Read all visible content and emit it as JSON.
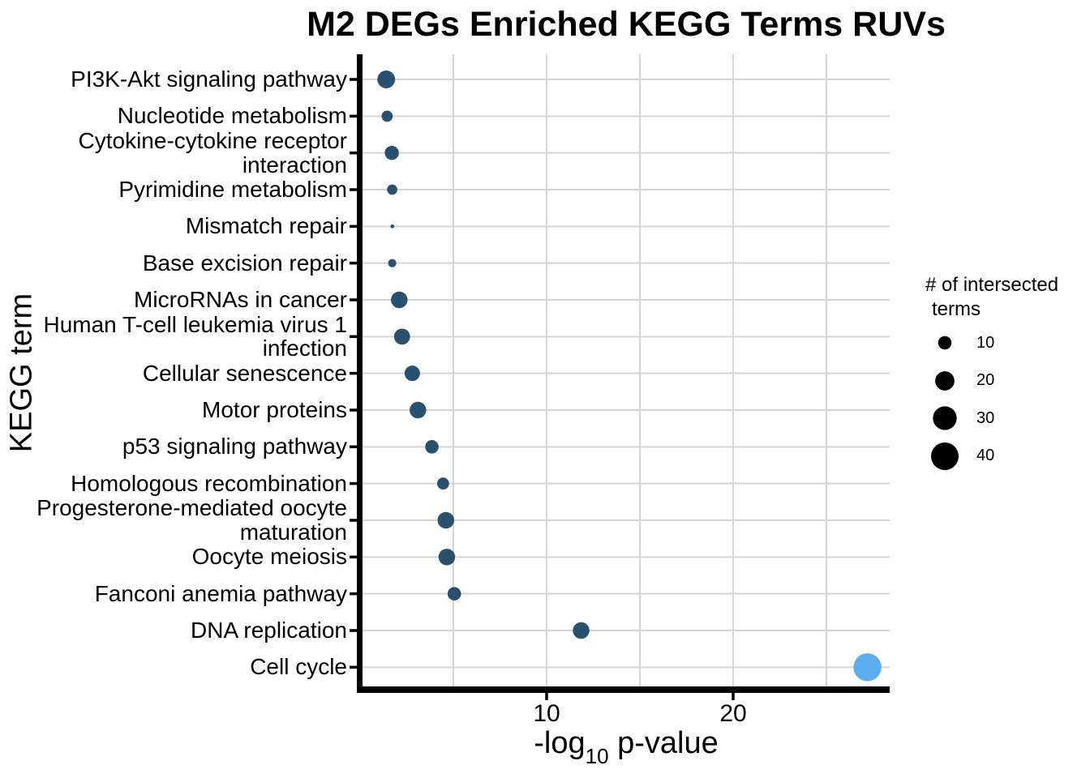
{
  "chart_data": {
    "type": "scatter",
    "title": "M2 DEGs Enriched KEGG Terms RUVs",
    "ylabel": "KEGG term",
    "xlabel": "-log10 p-value",
    "xlabel_parts": {
      "base": "-log",
      "sub": "10",
      "rest": " p-value"
    },
    "x_ticks": [
      "10",
      "20"
    ],
    "x_tick_values": [
      10,
      20
    ],
    "x_gridline_values": [
      5,
      10,
      15,
      20,
      25
    ],
    "xlim": [
      0,
      28.4
    ],
    "grid": true,
    "legend_position": "right",
    "size_legend": {
      "title_line1": "# of intersected",
      "title_line2": "terms",
      "values": [
        10,
        20,
        30,
        40
      ],
      "labels": [
        "10",
        "20",
        "30",
        "40"
      ],
      "dot_color": "#000000"
    },
    "colors": {
      "dot_default": "#29506F",
      "dot_highlight": "#5CADEE",
      "gridline": "#D5D5D5",
      "axis": "#000000",
      "text": "#000000"
    },
    "points": [
      {
        "term": "PI3K-Akt signaling pathway",
        "label": "PI3K-Akt signaling pathway",
        "neg_log10_p": 1.4,
        "intersected_terms": 17,
        "color": "#29506F"
      },
      {
        "term": "Nucleotide metabolism",
        "label": "Nucleotide metabolism",
        "neg_log10_p": 1.45,
        "intersected_terms": 7,
        "color": "#29506F"
      },
      {
        "term": "Cytokine-cytokine receptor interaction",
        "label": "Cytokine-cytokine receptor\ninteraction",
        "neg_log10_p": 1.7,
        "intersected_terms": 11,
        "color": "#29506F"
      },
      {
        "term": "Pyrimidine metabolism",
        "label": "Pyrimidine metabolism",
        "neg_log10_p": 1.72,
        "intersected_terms": 6,
        "color": "#29506F"
      },
      {
        "term": "Mismatch repair",
        "label": "Mismatch repair",
        "neg_log10_p": 1.73,
        "intersected_terms": 1,
        "color": "#29506F"
      },
      {
        "term": "Base excision repair",
        "label": "Base excision repair",
        "neg_log10_p": 1.72,
        "intersected_terms": 4,
        "color": "#29506F"
      },
      {
        "term": "MicroRNAs in cancer",
        "label": "MicroRNAs in cancer",
        "neg_log10_p": 2.1,
        "intersected_terms": 15,
        "color": "#29506F"
      },
      {
        "term": "Human T-cell leukemia virus 1 infection",
        "label": "Human T-cell leukemia virus 1\ninfection",
        "neg_log10_p": 2.25,
        "intersected_terms": 14,
        "color": "#29506F"
      },
      {
        "term": "Cellular senescence",
        "label": "Cellular senescence",
        "neg_log10_p": 2.8,
        "intersected_terms": 13,
        "color": "#29506F"
      },
      {
        "term": "Motor proteins",
        "label": "Motor proteins",
        "neg_log10_p": 3.1,
        "intersected_terms": 15,
        "color": "#29506F"
      },
      {
        "term": "p53 signaling pathway",
        "label": "p53 signaling pathway",
        "neg_log10_p": 3.85,
        "intersected_terms": 10,
        "color": "#29506F"
      },
      {
        "term": "Homologous recombination",
        "label": "Homologous recombination",
        "neg_log10_p": 4.45,
        "intersected_terms": 8,
        "color": "#29506F"
      },
      {
        "term": "Progesterone-mediated oocyte maturation",
        "label": "Progesterone-mediated oocyte\nmaturation",
        "neg_log10_p": 4.6,
        "intersected_terms": 15,
        "color": "#29506F"
      },
      {
        "term": "Oocyte meiosis",
        "label": "Oocyte meiosis",
        "neg_log10_p": 4.65,
        "intersected_terms": 15,
        "color": "#29506F"
      },
      {
        "term": "Fanconi anemia pathway",
        "label": "Fanconi anemia pathway",
        "neg_log10_p": 5.05,
        "intersected_terms": 10,
        "color": "#29506F"
      },
      {
        "term": "DNA replication",
        "label": "DNA replication",
        "neg_log10_p": 11.85,
        "intersected_terms": 15,
        "color": "#29506F"
      },
      {
        "term": "Cell cycle",
        "label": "Cell cycle",
        "neg_log10_p": 27.2,
        "intersected_terms": 41,
        "color": "#5CADEE"
      }
    ]
  }
}
